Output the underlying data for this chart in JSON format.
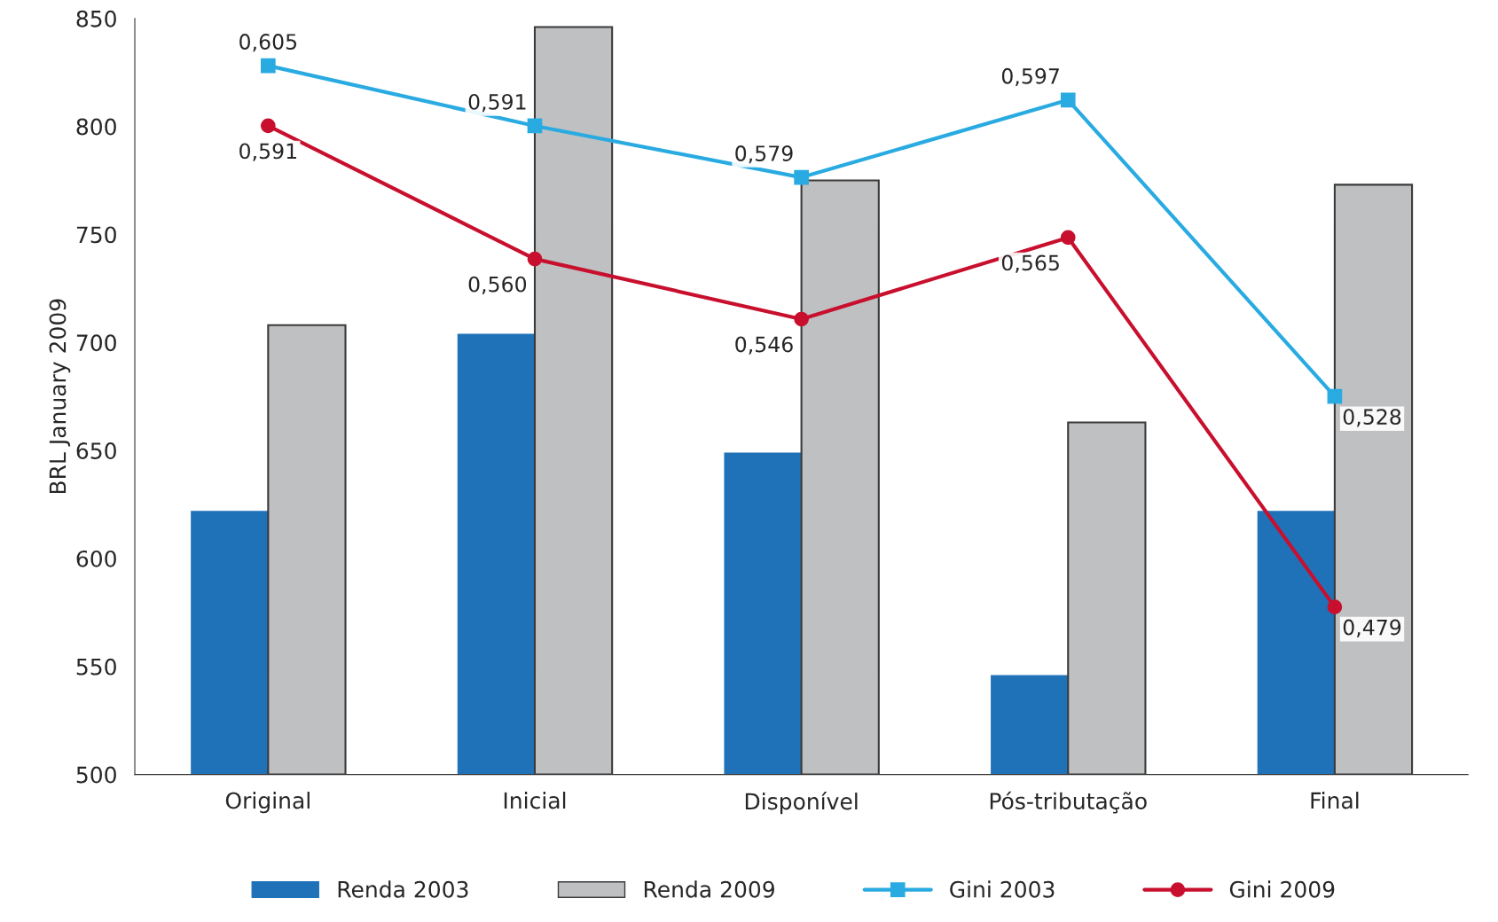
{
  "chart_data": {
    "type": "bar",
    "ylabel": "BRL January 2009",
    "categories": [
      "Original",
      "Inicial",
      "Disponível",
      "Pós-tributação",
      "Final"
    ],
    "ylim": [
      500,
      850
    ],
    "yticks": [
      500,
      550,
      600,
      650,
      700,
      750,
      800,
      850
    ],
    "y2lim": [
      0.44,
      0.616
    ],
    "grid": false,
    "legend": "bottom",
    "series": [
      {
        "name": "Renda 2003",
        "color": "#1f72b8",
        "values": [
          622,
          704,
          649,
          546,
          622
        ]
      },
      {
        "name": "Renda 2009",
        "color": "#bfc0c2",
        "values": [
          708,
          846,
          775,
          663,
          773
        ]
      },
      {
        "name": "Gini 2003",
        "type": "line",
        "axis": "y2",
        "color": "#29abe2",
        "marker": "square",
        "line_style": "solid",
        "values": [
          0.605,
          0.591,
          0.579,
          0.597,
          0.528
        ],
        "value_labels": [
          "0,605",
          "0,591",
          "0,579",
          "0,597",
          "0,528"
        ]
      },
      {
        "name": "Gini 2009",
        "type": "line",
        "axis": "y2",
        "color": "#c8102e",
        "marker": "circle",
        "line_style": "solid",
        "values": [
          0.591,
          0.56,
          0.546,
          0.565,
          0.479
        ],
        "value_labels": [
          "0,591",
          "0,560",
          "0,546",
          "0,565",
          "0,479"
        ]
      }
    ]
  }
}
